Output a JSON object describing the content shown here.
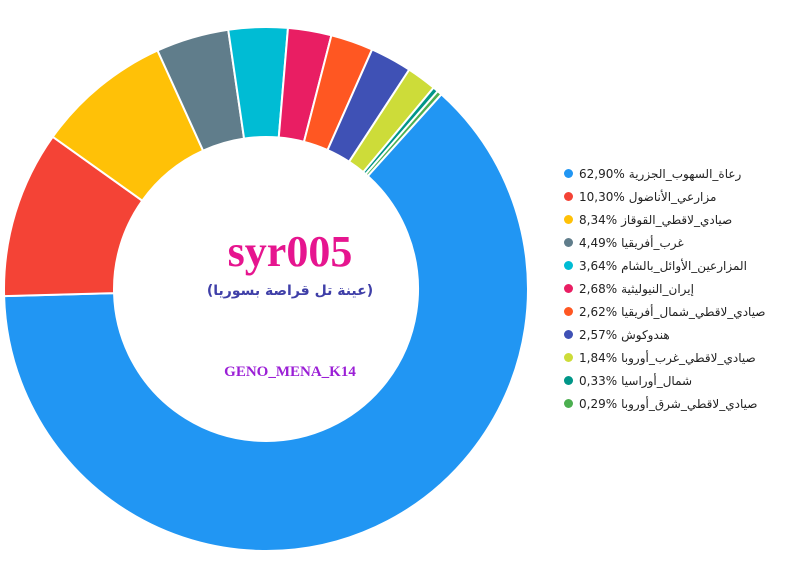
{
  "center": {
    "title": "syr005",
    "subtitle": "(عينة تل قراصة بسوريا)",
    "caption": "GENO_MENA_K14"
  },
  "chart_data": {
    "type": "pie",
    "style": "donut",
    "legend_position": "right",
    "series": [
      {
        "name": "رعاة_السهوب_الجزرية",
        "value": 62.9,
        "value_label": "62,90%",
        "color": "#2196F3"
      },
      {
        "name": "مزارعي_الأناضول",
        "value": 10.3,
        "value_label": "10,30%",
        "color": "#F44336"
      },
      {
        "name": "صيادي_لاقطي_القوقاز",
        "value": 8.34,
        "value_label": "8,34%",
        "color": "#FFC107"
      },
      {
        "name": "غرب_أفريقيا",
        "value": 4.49,
        "value_label": "4,49%",
        "color": "#607D8B"
      },
      {
        "name": "المزارعين_الأوائل_بالشام",
        "value": 3.64,
        "value_label": "3,64%",
        "color": "#00BCD4"
      },
      {
        "name": "إيران_النيوليثية",
        "value": 2.68,
        "value_label": "2,68%",
        "color": "#E91E63"
      },
      {
        "name": "صيادي_لاقطي_شمال_أفريقيا",
        "value": 2.62,
        "value_label": "2,62%",
        "color": "#FF5722"
      },
      {
        "name": "هندوكوش",
        "value": 2.57,
        "value_label": "2,57%",
        "color": "#3F51B5"
      },
      {
        "name": "صيادي_لاقطي_غرب_أوروبا",
        "value": 1.84,
        "value_label": "1,84%",
        "color": "#CDDC39"
      },
      {
        "name": "شمال_أوراسيا",
        "value": 0.33,
        "value_label": "0,33%",
        "color": "#009688"
      },
      {
        "name": "صيادي_لاقطي_شرق_أوروبا",
        "value": 0.29,
        "value_label": "0,29%",
        "color": "#4CAF50"
      }
    ]
  }
}
